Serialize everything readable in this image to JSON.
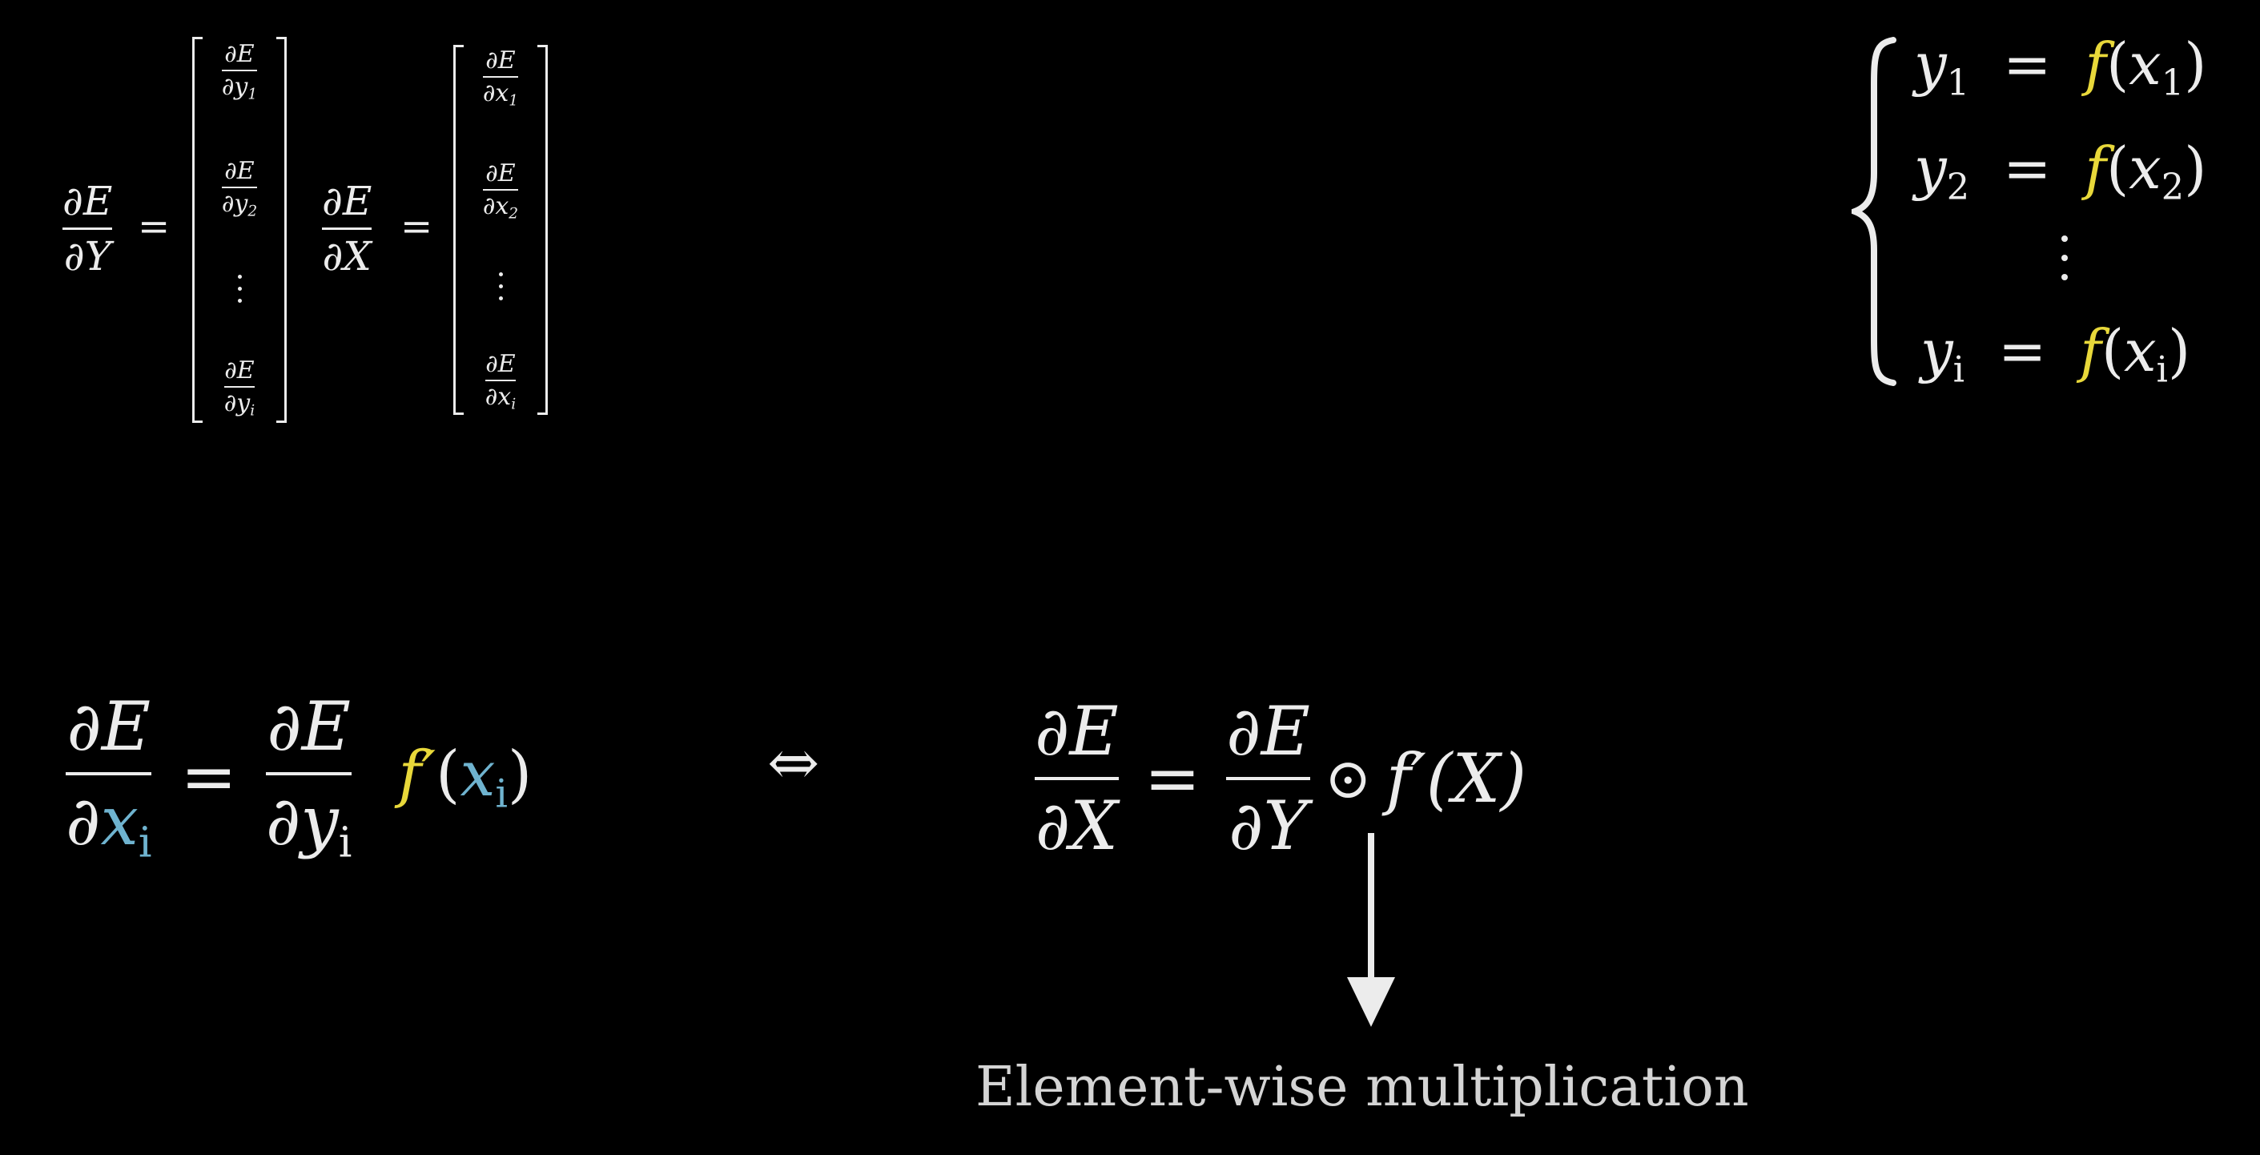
{
  "dEdY_vector": {
    "lhs_num": "∂E",
    "lhs_den": "∂Y",
    "equals": "=",
    "entries": [
      {
        "num": "∂E",
        "den_base": "∂y",
        "den_sub": "1"
      },
      {
        "num": "∂E",
        "den_base": "∂y",
        "den_sub": "2"
      },
      {
        "num": "∂E",
        "den_base": "∂y",
        "den_sub": "i"
      }
    ]
  },
  "dEdX_vector": {
    "lhs_num": "∂E",
    "lhs_den": "∂X",
    "equals": "=",
    "entries": [
      {
        "num": "∂E",
        "den_base": "∂x",
        "den_sub": "1"
      },
      {
        "num": "∂E",
        "den_base": "∂x",
        "den_sub": "2"
      },
      {
        "num": "∂E",
        "den_base": "∂x",
        "den_sub": "i"
      }
    ]
  },
  "cases": [
    {
      "y": "y",
      "sub": "1",
      "eq": "=",
      "f": "f",
      "open": "(",
      "x": "x",
      "xsub": "1",
      "close": ")"
    },
    {
      "y": "y",
      "sub": "2",
      "eq": "=",
      "f": "f",
      "open": "(",
      "x": "x",
      "xsub": "2",
      "close": ")"
    },
    {
      "y": "y",
      "sub": "i",
      "eq": "=",
      "f": "f",
      "open": "(",
      "x": "x",
      "xsub": "i",
      "close": ")"
    }
  ],
  "element_eq": {
    "lhs_num": "∂E",
    "lhs_den_d": "∂",
    "lhs_den_x": "x",
    "lhs_den_sub": "i",
    "equals": "=",
    "rhs_num": "∂E",
    "rhs_den_d": "∂y",
    "rhs_den_sub": "i",
    "fprime": "f′",
    "open": "(",
    "x": "x",
    "xsub": "i",
    "close": ")"
  },
  "iff": "⇔",
  "matrix_eq": {
    "lhs_num": "∂E",
    "lhs_den": "∂X",
    "equals": "=",
    "rhs_num": "∂E",
    "rhs_den": "∂Y",
    "odot": "⊙",
    "tail": "f′(X)"
  },
  "caption": "Element-wise multiplication",
  "colors": {
    "background": "#000000",
    "text": "#ececec",
    "f_yellow": "#e8d83a",
    "x_blue": "#6fb3cf"
  }
}
